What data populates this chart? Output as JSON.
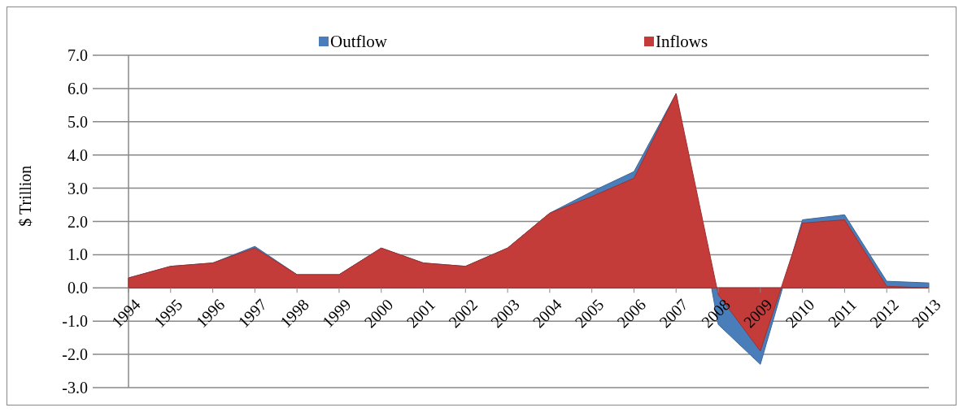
{
  "chart_data": {
    "type": "area",
    "ylabel": "$ Trillion",
    "categories": [
      "1994",
      "1995",
      "1996",
      "1997",
      "1998",
      "1999",
      "2000",
      "2001",
      "2002",
      "2003",
      "2004",
      "2005",
      "2006",
      "2007",
      "2008",
      "2009",
      "2010",
      "2011",
      "2012",
      "2013"
    ],
    "series": [
      {
        "name": "Outflow",
        "color": "#4a7ebb",
        "values": [
          0.3,
          0.65,
          0.75,
          1.25,
          0.4,
          0.4,
          1.2,
          0.75,
          0.65,
          1.2,
          2.25,
          2.9,
          3.5,
          5.85,
          -1.1,
          -2.3,
          2.05,
          2.2,
          0.2,
          0.15
        ]
      },
      {
        "name": "Inflows",
        "color": "#c43c39",
        "values": [
          0.3,
          0.65,
          0.75,
          1.2,
          0.4,
          0.4,
          1.2,
          0.75,
          0.65,
          1.2,
          2.25,
          2.75,
          3.3,
          5.85,
          -0.2,
          -1.9,
          1.95,
          2.05,
          0.05,
          0.0
        ]
      }
    ],
    "ylim": [
      -3,
      7
    ],
    "yticks": [
      {
        "value": -3,
        "label": "-3.0"
      },
      {
        "value": -2,
        "label": "-2.0"
      },
      {
        "value": -1,
        "label": "-1.0"
      },
      {
        "value": 0,
        "label": "0.0"
      },
      {
        "value": 1,
        "label": "1.0"
      },
      {
        "value": 2,
        "label": "2.0"
      },
      {
        "value": 3,
        "label": "3.0"
      },
      {
        "value": 4,
        "label": "4.0"
      },
      {
        "value": 5,
        "label": "5.0"
      },
      {
        "value": 6,
        "label": "6.0"
      },
      {
        "value": 7,
        "label": "7.0"
      }
    ],
    "grid": "y",
    "legend": "top"
  }
}
